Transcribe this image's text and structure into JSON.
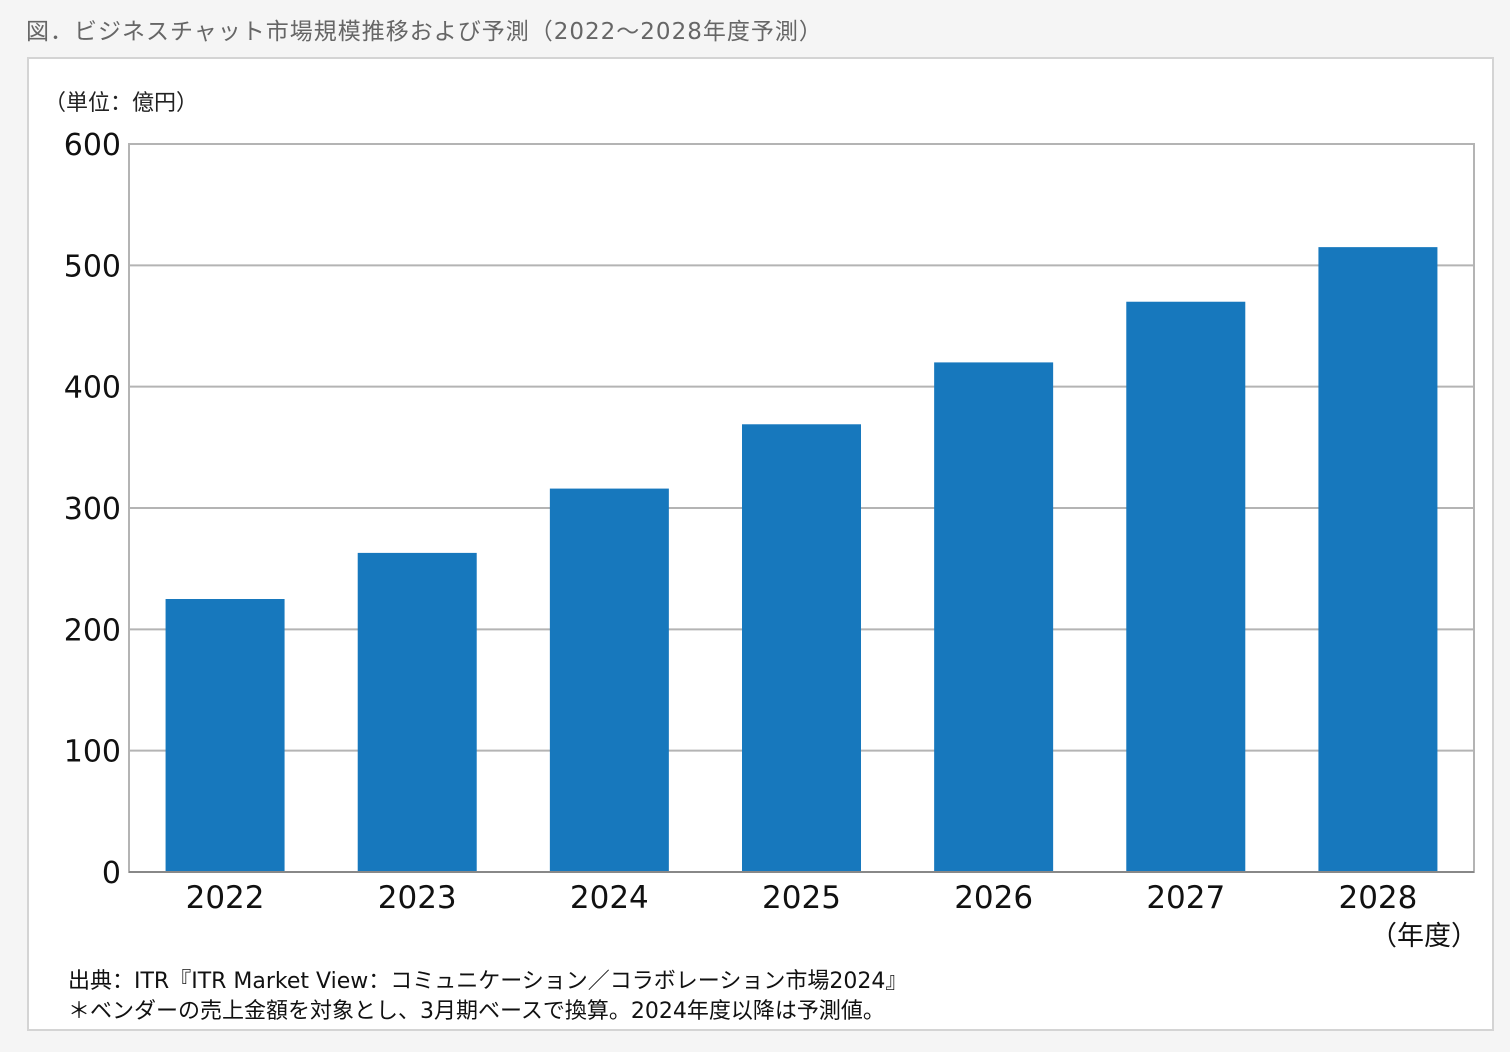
{
  "caption": "図．ビジネスチャット市場規模推移および予測（2022〜2028年度予測）",
  "source": {
    "line1": "出典：ITR『ITR Market View：コミュニケーション／コラボレーション市場2024』",
    "line2": "＊ベンダーの売上金額を対象とし、3月期ベースで換算。2024年度以降は予測値。"
  },
  "chart_data": {
    "type": "bar",
    "title": "",
    "ylabel": "（単位：億円）",
    "xlabel": "（年度）",
    "categories": [
      "2022",
      "2023",
      "2024",
      "2025",
      "2026",
      "2027",
      "2028"
    ],
    "values": [
      225,
      263,
      316,
      369,
      420,
      470,
      515
    ],
    "ylim": [
      0,
      600
    ],
    "yticks": [
      0,
      100,
      200,
      300,
      400,
      500,
      600
    ],
    "grid": true,
    "bar_color": "#1778bd",
    "grid_color": "#b4b4b4"
  }
}
